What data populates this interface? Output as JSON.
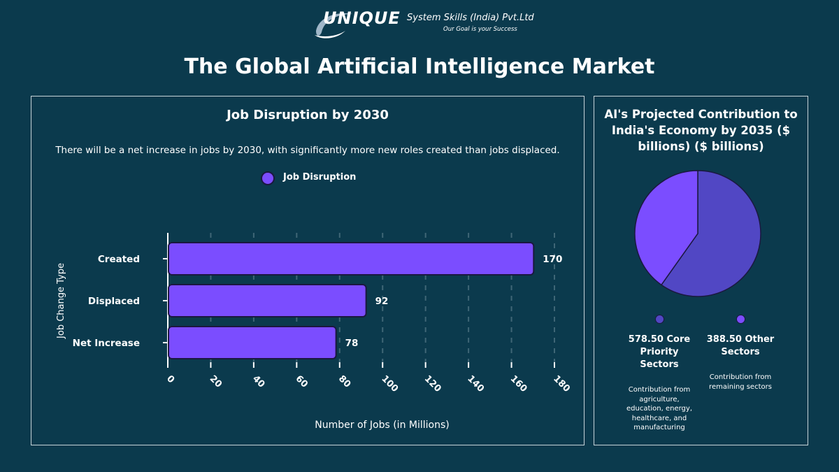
{
  "logo": {
    "brand": "UNIQUE",
    "company": "System Skills (India) Pvt.Ltd",
    "tagline": "Our Goal is your Success"
  },
  "page_title": "The Global Artificial Intelligence Market",
  "colors": {
    "background": "#0b3a4d",
    "bar_fill": "#7b4dff",
    "bar_stroke": "#1b1840",
    "pie_core": "#5147c4",
    "pie_other": "#7b4dff"
  },
  "chart_data": [
    {
      "type": "bar",
      "orientation": "horizontal",
      "title": "Job Disruption by 2030",
      "subtitle": "There will be a net increase in jobs by 2030, with significantly more new roles created than jobs displaced.",
      "legend": "Job Disruption",
      "legend_position": "top-center",
      "categories": [
        "Created",
        "Displaced",
        "Net Increase"
      ],
      "values": [
        170,
        92,
        78
      ],
      "xlabel": "Number of Jobs (in Millions)",
      "ylabel": "Job Change Type",
      "xlim": [
        0,
        180
      ],
      "xticks": [
        "0",
        "20",
        "40",
        "60",
        "80",
        "100",
        "120",
        "140",
        "160",
        "180"
      ],
      "grid": "vertical-dashed"
    },
    {
      "type": "pie",
      "title": "AI's Projected Contribution to India's Economy by 2035 ($ billions) ($ billions)",
      "slices": [
        {
          "value": 578.5,
          "label": "578.50 Core Priority Sectors",
          "description": "Contribution from agriculture, education, energy, healthcare, and manufacturing",
          "color": "#5147c4"
        },
        {
          "value": 388.5,
          "label": "388.50 Other Sectors",
          "description": "Contribution from remaining sectors",
          "color": "#7b4dff"
        }
      ],
      "legend_position": "bottom"
    }
  ]
}
